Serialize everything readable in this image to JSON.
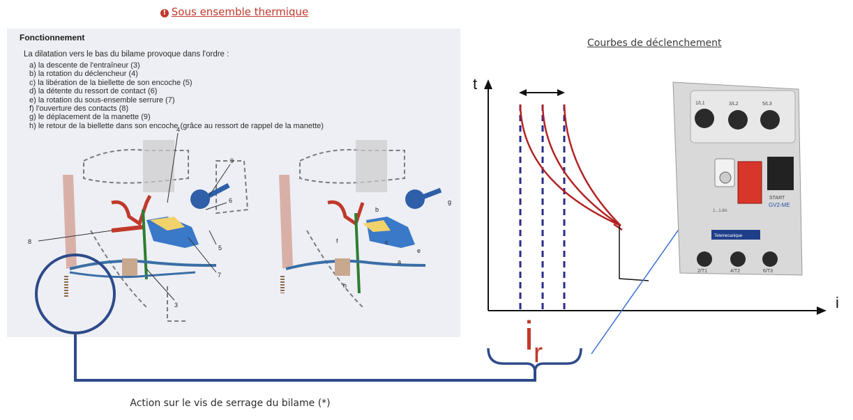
{
  "header": {
    "bullet": "!",
    "title": "Sous ensemble thermique"
  },
  "scan": {
    "heading": "Fonctionnement",
    "intro": "La dilatation vers le bas du bilame provoque dans l'ordre :",
    "steps": [
      "a) la descente de l'entraîneur (3)",
      "b) la rotation du déclencheur (4)",
      "c) la libération de la biellette de son encoche (5)",
      "d) la détente du ressort de contact (6)",
      "e) la rotation du sous-ensemble serrure (7)",
      "f) l'ouverture des contacts (8)",
      "g) le déplacement de la manette (9)",
      "h) le retour de la biellette dans son encoche (grâce au ressort de rappel de la manette)"
    ],
    "callouts": [
      "4",
      "9",
      "6",
      "5",
      "7",
      "3",
      "8"
    ],
    "right_callouts": [
      "b",
      "f",
      "c",
      "e",
      "g",
      "a",
      "h"
    ]
  },
  "chart": {
    "title": "Courbes de déclenchement",
    "y_axis": "t",
    "x_axis": "i",
    "ir_main": "i",
    "ir_sub": "r"
  },
  "device": {
    "terminals_top": [
      "1/L1",
      "3/L2",
      "5/L3"
    ],
    "terminals_bottom": [
      "2/T1",
      "4/T2",
      "6/T3"
    ],
    "model": "GV2-ME",
    "start_label": "START",
    "range_label": "1...1.6A",
    "brand_label": "Telemecanique"
  },
  "colors": {
    "accent_red": "#c0392b",
    "curve_red": "#b22222",
    "line_blue": "#2e4a8a",
    "dash_navy": "#2a2a8a"
  },
  "caption": "Action sur le vis de serrage du bilame (*)"
}
